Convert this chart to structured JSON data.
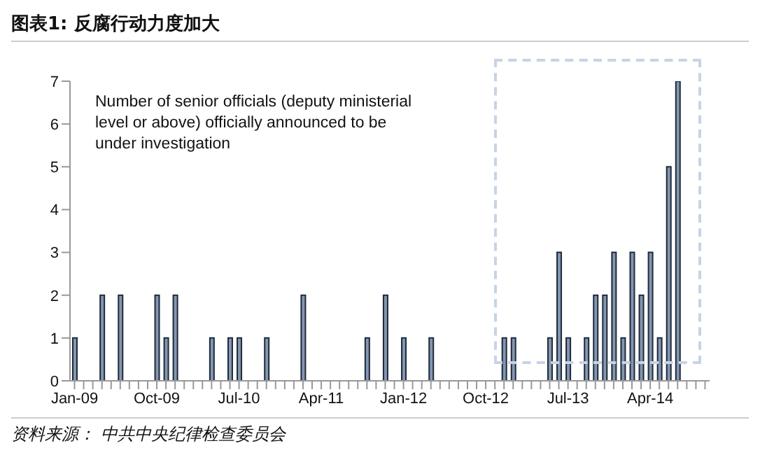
{
  "chart_data": {
    "type": "bar",
    "title": "图表1:  反腐行动力度加大",
    "categories": [
      "Jan-09",
      null,
      null,
      null,
      null,
      null,
      null,
      null,
      null,
      "Oct-09",
      null,
      null,
      null,
      null,
      null,
      null,
      null,
      null,
      "Jul-10",
      null,
      null,
      null,
      null,
      null,
      null,
      null,
      null,
      "Apr-11",
      null,
      null,
      null,
      null,
      null,
      null,
      null,
      null,
      "Jan-12",
      null,
      null,
      null,
      null,
      null,
      null,
      null,
      null,
      "Oct-12",
      null,
      null,
      null,
      null,
      null,
      null,
      null,
      null,
      "Jul-13",
      null,
      null,
      null,
      null,
      null,
      null,
      null,
      null,
      "Apr-14",
      null,
      null,
      null,
      null,
      null,
      null
    ],
    "values": [
      1,
      0,
      0,
      2,
      0,
      2,
      0,
      0,
      0,
      2,
      1,
      2,
      0,
      0,
      0,
      1,
      0,
      1,
      1,
      0,
      0,
      1,
      0,
      0,
      0,
      2,
      0,
      0,
      0,
      0,
      0,
      0,
      1,
      0,
      2,
      0,
      1,
      0,
      0,
      1,
      0,
      0,
      0,
      0,
      0,
      0,
      0,
      1,
      1,
      0,
      0,
      0,
      1,
      3,
      1,
      0,
      1,
      2,
      2,
      3,
      1,
      3,
      2,
      3,
      1,
      5,
      7,
      0,
      0,
      0
    ],
    "color": "#8497b0",
    "ylim": [
      0,
      7
    ],
    "yticks": [
      0,
      1,
      2,
      3,
      4,
      5,
      6,
      7
    ],
    "grid": false,
    "annotations": [
      "Number of senior officials (deputy ministerial level or above) officially announced to be under investigation",
      "资料来源：  中共中央纪律检查委员会"
    ]
  }
}
